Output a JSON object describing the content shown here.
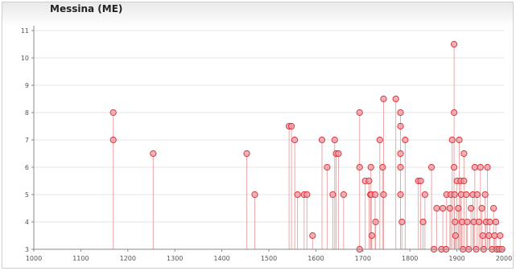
{
  "title": "Messina (ME)",
  "chart_data": {
    "type": "scatter",
    "style": "lollipop",
    "title": "Messina (ME)",
    "xlabel": "",
    "ylabel": "",
    "xlim": [
      1000,
      2000
    ],
    "ylim": [
      3,
      11
    ],
    "xticks": [
      1000,
      1100,
      1200,
      1300,
      1400,
      1500,
      1600,
      1700,
      1800,
      1900,
      2000
    ],
    "xtick_labels": [
      "1000",
      "1100",
      "1200",
      "1300",
      "1400",
      "1500",
      "1600",
      "1700",
      "1800",
      "1900",
      "2000"
    ],
    "yticks": [
      3,
      4,
      5,
      6,
      7,
      8,
      9,
      10,
      11
    ],
    "ytick_labels": [
      "3",
      "4",
      "5",
      "6",
      "7",
      "8",
      "9",
      "10",
      "11"
    ],
    "grid": true,
    "colors": {
      "stem": "#e89a9a",
      "point": "#d9363e",
      "point_light": "#ef9aa0"
    },
    "points": [
      {
        "x": 1169,
        "y": 8
      },
      {
        "x": 1169,
        "y": 7
      },
      {
        "x": 1254,
        "y": 6.5
      },
      {
        "x": 1453,
        "y": 6.5
      },
      {
        "x": 1470,
        "y": 5
      },
      {
        "x": 1543,
        "y": 7.5
      },
      {
        "x": 1548,
        "y": 7.5
      },
      {
        "x": 1555,
        "y": 7
      },
      {
        "x": 1561,
        "y": 5
      },
      {
        "x": 1575,
        "y": 5
      },
      {
        "x": 1581,
        "y": 5
      },
      {
        "x": 1593,
        "y": 3.5
      },
      {
        "x": 1613,
        "y": 7
      },
      {
        "x": 1624,
        "y": 6
      },
      {
        "x": 1636,
        "y": 5
      },
      {
        "x": 1640,
        "y": 7
      },
      {
        "x": 1643,
        "y": 6.5
      },
      {
        "x": 1648,
        "y": 6.5
      },
      {
        "x": 1659,
        "y": 5
      },
      {
        "x": 1693,
        "y": 8
      },
      {
        "x": 1693,
        "y": 6
      },
      {
        "x": 1693,
        "y": 3
      },
      {
        "x": 1705,
        "y": 5.5
      },
      {
        "x": 1713,
        "y": 5.5
      },
      {
        "x": 1716,
        "y": 5
      },
      {
        "x": 1717,
        "y": 6
      },
      {
        "x": 1718,
        "y": 5
      },
      {
        "x": 1719,
        "y": 3.5
      },
      {
        "x": 1726,
        "y": 5
      },
      {
        "x": 1727,
        "y": 4
      },
      {
        "x": 1736,
        "y": 7
      },
      {
        "x": 1744,
        "y": 8.5
      },
      {
        "x": 1742,
        "y": 6
      },
      {
        "x": 1744,
        "y": 5
      },
      {
        "x": 1770,
        "y": 8.5
      },
      {
        "x": 1780,
        "y": 8
      },
      {
        "x": 1780,
        "y": 7.5
      },
      {
        "x": 1780,
        "y": 6.5
      },
      {
        "x": 1780,
        "y": 6
      },
      {
        "x": 1780,
        "y": 5
      },
      {
        "x": 1783,
        "y": 4
      },
      {
        "x": 1790,
        "y": 7
      },
      {
        "x": 1818,
        "y": 5.5
      },
      {
        "x": 1823,
        "y": 5.5
      },
      {
        "x": 1828,
        "y": 4
      },
      {
        "x": 1832,
        "y": 5
      },
      {
        "x": 1846,
        "y": 6
      },
      {
        "x": 1851,
        "y": 3
      },
      {
        "x": 1857,
        "y": 4.5
      },
      {
        "x": 1867,
        "y": 3
      },
      {
        "x": 1870,
        "y": 4.5
      },
      {
        "x": 1877,
        "y": 3
      },
      {
        "x": 1878,
        "y": 5
      },
      {
        "x": 1885,
        "y": 4.5
      },
      {
        "x": 1887,
        "y": 5
      },
      {
        "x": 1890,
        "y": 7
      },
      {
        "x": 1894,
        "y": 10.5
      },
      {
        "x": 1894,
        "y": 8
      },
      {
        "x": 1894,
        "y": 6
      },
      {
        "x": 1895,
        "y": 5
      },
      {
        "x": 1896,
        "y": 4
      },
      {
        "x": 1897,
        "y": 3.5
      },
      {
        "x": 1900,
        "y": 5.5
      },
      {
        "x": 1903,
        "y": 4.5
      },
      {
        "x": 1905,
        "y": 7
      },
      {
        "x": 1908,
        "y": 5.5
      },
      {
        "x": 1909,
        "y": 5
      },
      {
        "x": 1911,
        "y": 4
      },
      {
        "x": 1913,
        "y": 3
      },
      {
        "x": 1915,
        "y": 6.5
      },
      {
        "x": 1915,
        "y": 5.5
      },
      {
        "x": 1920,
        "y": 5
      },
      {
        "x": 1922,
        "y": 4
      },
      {
        "x": 1925,
        "y": 3
      },
      {
        "x": 1930,
        "y": 4.5
      },
      {
        "x": 1934,
        "y": 5
      },
      {
        "x": 1936,
        "y": 4
      },
      {
        "x": 1938,
        "y": 6
      },
      {
        "x": 1941,
        "y": 3
      },
      {
        "x": 1943,
        "y": 5
      },
      {
        "x": 1947,
        "y": 4
      },
      {
        "x": 1950,
        "y": 6
      },
      {
        "x": 1953,
        "y": 4.5
      },
      {
        "x": 1955,
        "y": 3.5
      },
      {
        "x": 1957,
        "y": 3
      },
      {
        "x": 1960,
        "y": 5
      },
      {
        "x": 1962,
        "y": 4
      },
      {
        "x": 1965,
        "y": 6
      },
      {
        "x": 1968,
        "y": 3.5
      },
      {
        "x": 1970,
        "y": 4
      },
      {
        "x": 1975,
        "y": 3
      },
      {
        "x": 1978,
        "y": 4.5
      },
      {
        "x": 1980,
        "y": 3.5
      },
      {
        "x": 1983,
        "y": 4
      },
      {
        "x": 1985,
        "y": 3
      },
      {
        "x": 1990,
        "y": 3
      },
      {
        "x": 1992,
        "y": 3.5
      },
      {
        "x": 1996,
        "y": 3
      }
    ]
  }
}
